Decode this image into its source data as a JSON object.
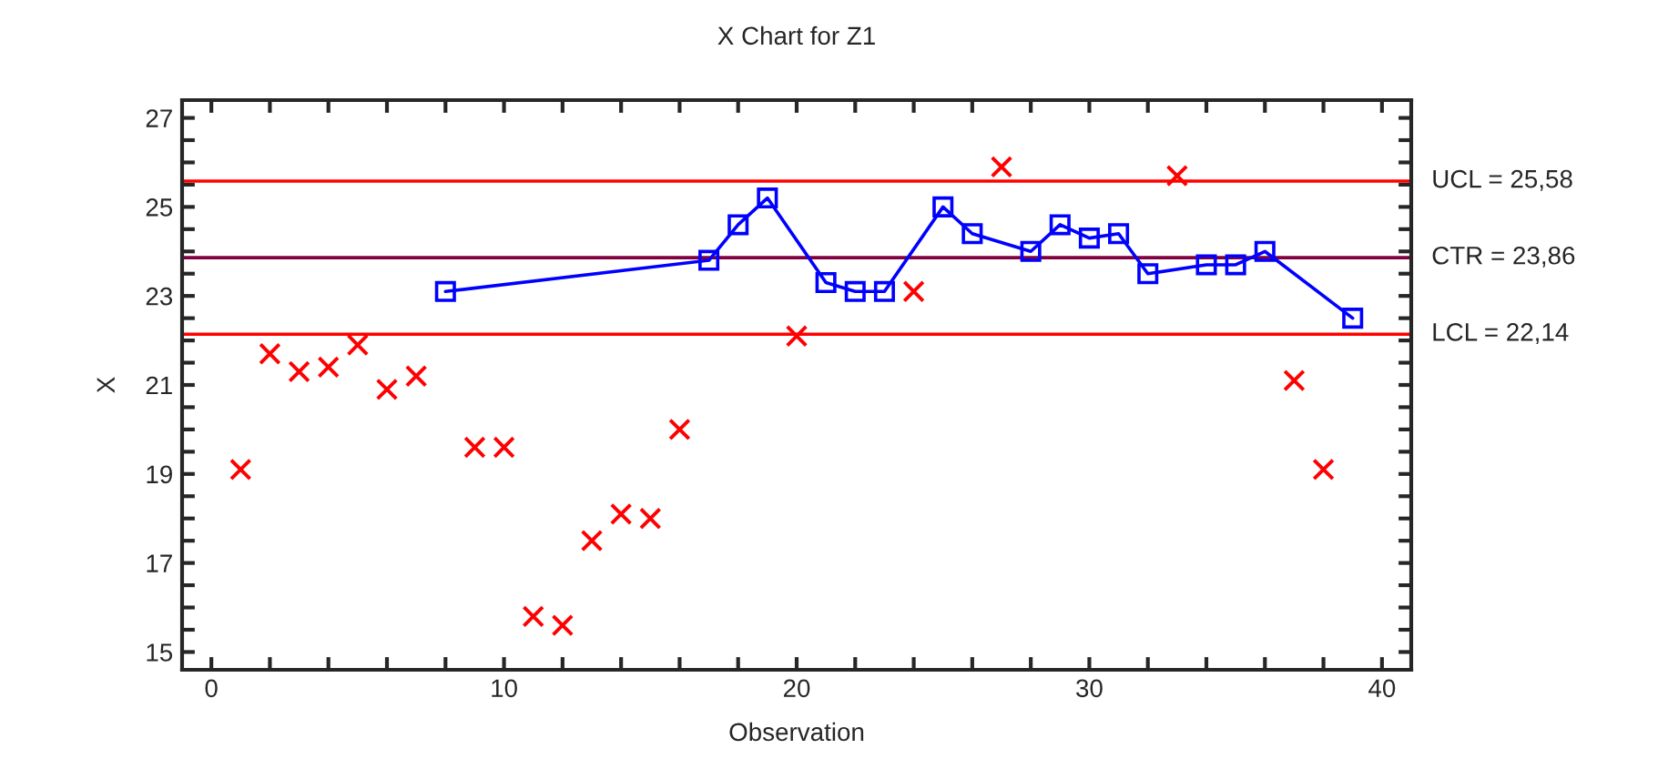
{
  "chart_data": {
    "type": "line",
    "title": "X Chart for Z1",
    "xlabel": "Observation",
    "ylabel": "X",
    "series": [
      {
        "color": "#0000ff",
        "marker": "square",
        "line_style": "solid",
        "x": [
          8,
          17,
          18,
          19,
          21,
          22,
          23,
          25,
          26,
          28,
          29,
          30,
          31,
          32,
          34,
          35,
          36,
          39
        ],
        "values": [
          23.1,
          23.8,
          24.6,
          25.2,
          23.3,
          23.1,
          23.1,
          25.0,
          24.4,
          24.0,
          24.6,
          24.3,
          24.4,
          23.5,
          23.7,
          23.7,
          24.0,
          22.5
        ]
      },
      {
        "type": "scatter",
        "color": "#ff0000",
        "marker": "cross",
        "x": [
          1,
          2,
          3,
          4,
          5,
          6,
          7,
          9,
          10,
          11,
          12,
          13,
          14,
          15,
          16,
          20,
          24,
          27,
          33,
          37,
          38
        ],
        "values": [
          19.1,
          21.7,
          21.3,
          21.4,
          21.9,
          20.9,
          21.2,
          19.6,
          19.6,
          15.8,
          15.6,
          17.5,
          18.1,
          18.0,
          20.0,
          22.1,
          23.1,
          25.9,
          25.7,
          21.1,
          19.1
        ]
      }
    ],
    "ref_lines": [
      {
        "axis": "y",
        "value": 25.58,
        "label": "UCL = 25,58",
        "color": "#ff0000"
      },
      {
        "axis": "y",
        "value": 23.86,
        "label": "CTR = 23,86",
        "color": "#800040"
      },
      {
        "axis": "y",
        "value": 22.14,
        "label": "LCL = 22,14",
        "color": "#ff0000"
      }
    ],
    "xlim": [
      -1,
      41
    ],
    "ylim": [
      14.6,
      27.4
    ],
    "xticks": [
      0,
      {
        "value": 2,
        "label": null
      },
      {
        "value": 4,
        "label": null
      },
      {
        "value": 6,
        "label": null
      },
      {
        "value": 8,
        "label": null
      },
      10,
      {
        "value": 12,
        "label": null
      },
      {
        "value": 14,
        "label": null
      },
      {
        "value": 16,
        "label": null
      },
      {
        "value": 18,
        "label": null
      },
      20,
      {
        "value": 22,
        "label": null
      },
      {
        "value": 24,
        "label": null
      },
      {
        "value": 26,
        "label": null
      },
      {
        "value": 28,
        "label": null
      },
      30,
      {
        "value": 32,
        "label": null
      },
      {
        "value": 34,
        "label": null
      },
      {
        "value": 36,
        "label": null
      },
      {
        "value": 38,
        "label": null
      },
      40
    ],
    "yticks": [
      15,
      {
        "value": 15.5,
        "label": null
      },
      {
        "value": 16,
        "label": null
      },
      {
        "value": 16.5,
        "label": null
      },
      17,
      {
        "value": 17.5,
        "label": null
      },
      {
        "value": 18,
        "label": null
      },
      {
        "value": 18.5,
        "label": null
      },
      19,
      {
        "value": 19.5,
        "label": null
      },
      {
        "value": 20,
        "label": null
      },
      {
        "value": 20.5,
        "label": null
      },
      21,
      {
        "value": 21.5,
        "label": null
      },
      {
        "value": 22,
        "label": null
      },
      {
        "value": 22.5,
        "label": null
      },
      23,
      {
        "value": 23.5,
        "label": null
      },
      {
        "value": 24,
        "label": null
      },
      {
        "value": 24.5,
        "label": null
      },
      25,
      {
        "value": 25.5,
        "label": null
      },
      {
        "value": 26,
        "label": null
      },
      {
        "value": 26.5,
        "label": null
      },
      27
    ],
    "grid": false,
    "legend": false
  }
}
